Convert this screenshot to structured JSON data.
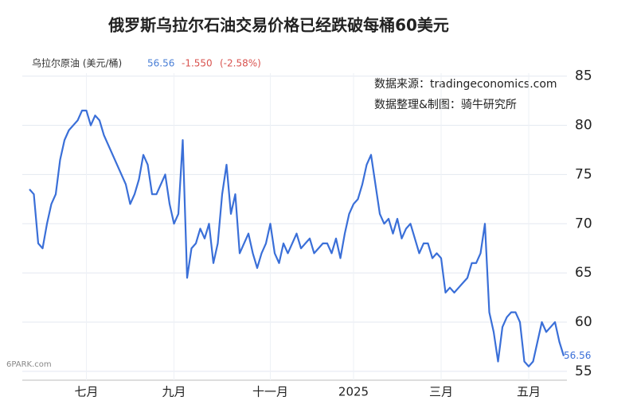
{
  "chart_data": {
    "type": "line",
    "title": "俄罗斯乌拉尔石油交易价格已经跌破每桶60美元",
    "header": {
      "name": "乌拉尔原油 (美元/桶)",
      "price": "56.56",
      "change": "-1.550",
      "percent": "(-2.58%)"
    },
    "annotations": [
      "数据来源：tradingeconomics.com",
      "数据整理&制图：骑牛研究所"
    ],
    "watermark": "6PARK.com",
    "categories": [
      null,
      null,
      null,
      null,
      null,
      null,
      null,
      null,
      null,
      null,
      null,
      null,
      null,
      "七月",
      null,
      null,
      null,
      null,
      null,
      null,
      null,
      null,
      null,
      null,
      null,
      null,
      null,
      null,
      null,
      null,
      null,
      null,
      null,
      "九月",
      null,
      null,
      null,
      null,
      null,
      null,
      null,
      null,
      null,
      null,
      null,
      null,
      null,
      null,
      null,
      null,
      null,
      null,
      null,
      null,
      null,
      "十一月",
      null,
      null,
      null,
      null,
      null,
      null,
      null,
      null,
      null,
      null,
      null,
      null,
      null,
      null,
      null,
      null,
      null,
      null,
      "2025",
      null,
      null,
      null,
      null,
      null,
      null,
      null,
      null,
      null,
      null,
      null,
      null,
      null,
      null,
      null,
      null,
      null,
      null,
      null,
      "三月",
      null,
      null,
      null,
      null,
      null,
      null,
      null,
      null,
      null,
      null,
      null,
      null,
      null,
      null,
      null,
      null,
      null,
      null,
      null,
      "五月",
      null,
      null,
      null,
      null,
      null,
      null,
      null,
      null
    ],
    "series": [
      {
        "name": "乌拉尔原油",
        "color": "#3a6fd8",
        "values": [
          73.5,
          73,
          68,
          67.5,
          70,
          72,
          73,
          76.5,
          78.5,
          79.5,
          80,
          80.5,
          81.5,
          81.5,
          80,
          81,
          80.5,
          79,
          78,
          77,
          76,
          75,
          74,
          72,
          73,
          74.5,
          77,
          76,
          73,
          73,
          74,
          75,
          72,
          70,
          71,
          78.5,
          64.5,
          67.5,
          68,
          69.5,
          68.5,
          70,
          66,
          68,
          73,
          76,
          71,
          73,
          67,
          68,
          69,
          67,
          65.5,
          67,
          68,
          70,
          67,
          66,
          68,
          67,
          68,
          69,
          67.5,
          68,
          68.5,
          67,
          67.5,
          68,
          68,
          67,
          68.5,
          66.5,
          69,
          71,
          72,
          72.5,
          74,
          76,
          77,
          74,
          71,
          70,
          70.5,
          69,
          70.5,
          68.5,
          69.5,
          70,
          68.5,
          67,
          68,
          68,
          66.5,
          67,
          66.5,
          63,
          63.5,
          63,
          63.5,
          64,
          64.5,
          66,
          66,
          67,
          70,
          61,
          59,
          56,
          59.5,
          60.5,
          61,
          61,
          60,
          56,
          55.5,
          56,
          58,
          60,
          59,
          59.5,
          60,
          58,
          56.56
        ]
      }
    ],
    "ylim": [
      54.1,
      85.3
    ],
    "yticks": [
      55,
      60,
      65,
      70,
      75,
      80,
      85
    ],
    "grid": true
  }
}
